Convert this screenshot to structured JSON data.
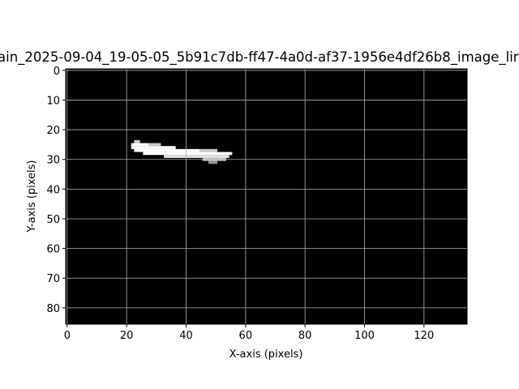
{
  "chart_data": {
    "type": "image",
    "title": "ain_2025-09-04_19-05-05_5b91c7db-ff47-4a0d-af37-1956e4df26b8_image_lin",
    "x_label": "X-axis (pixels)",
    "y_label": "Y-axis (pixels)",
    "xlim": [
      -0.5,
      134.5
    ],
    "ylim": [
      85.5,
      -0.5
    ],
    "xticks": [
      0,
      20,
      40,
      60,
      80,
      100,
      120
    ],
    "yticks": [
      0,
      10,
      20,
      30,
      40,
      50,
      60,
      70,
      80
    ],
    "grid": true,
    "background": "#000000",
    "runs": [
      [
        24,
        23,
        24,
        200
      ],
      [
        25,
        22,
        27,
        255
      ],
      [
        25,
        28,
        31,
        200
      ],
      [
        26,
        22,
        36,
        255
      ],
      [
        27,
        23,
        44,
        255
      ],
      [
        27,
        45,
        50,
        200
      ],
      [
        28,
        26,
        55,
        255
      ],
      [
        29,
        33,
        54,
        230
      ],
      [
        30,
        46,
        53,
        200
      ],
      [
        31,
        48,
        50,
        150
      ]
    ]
  }
}
